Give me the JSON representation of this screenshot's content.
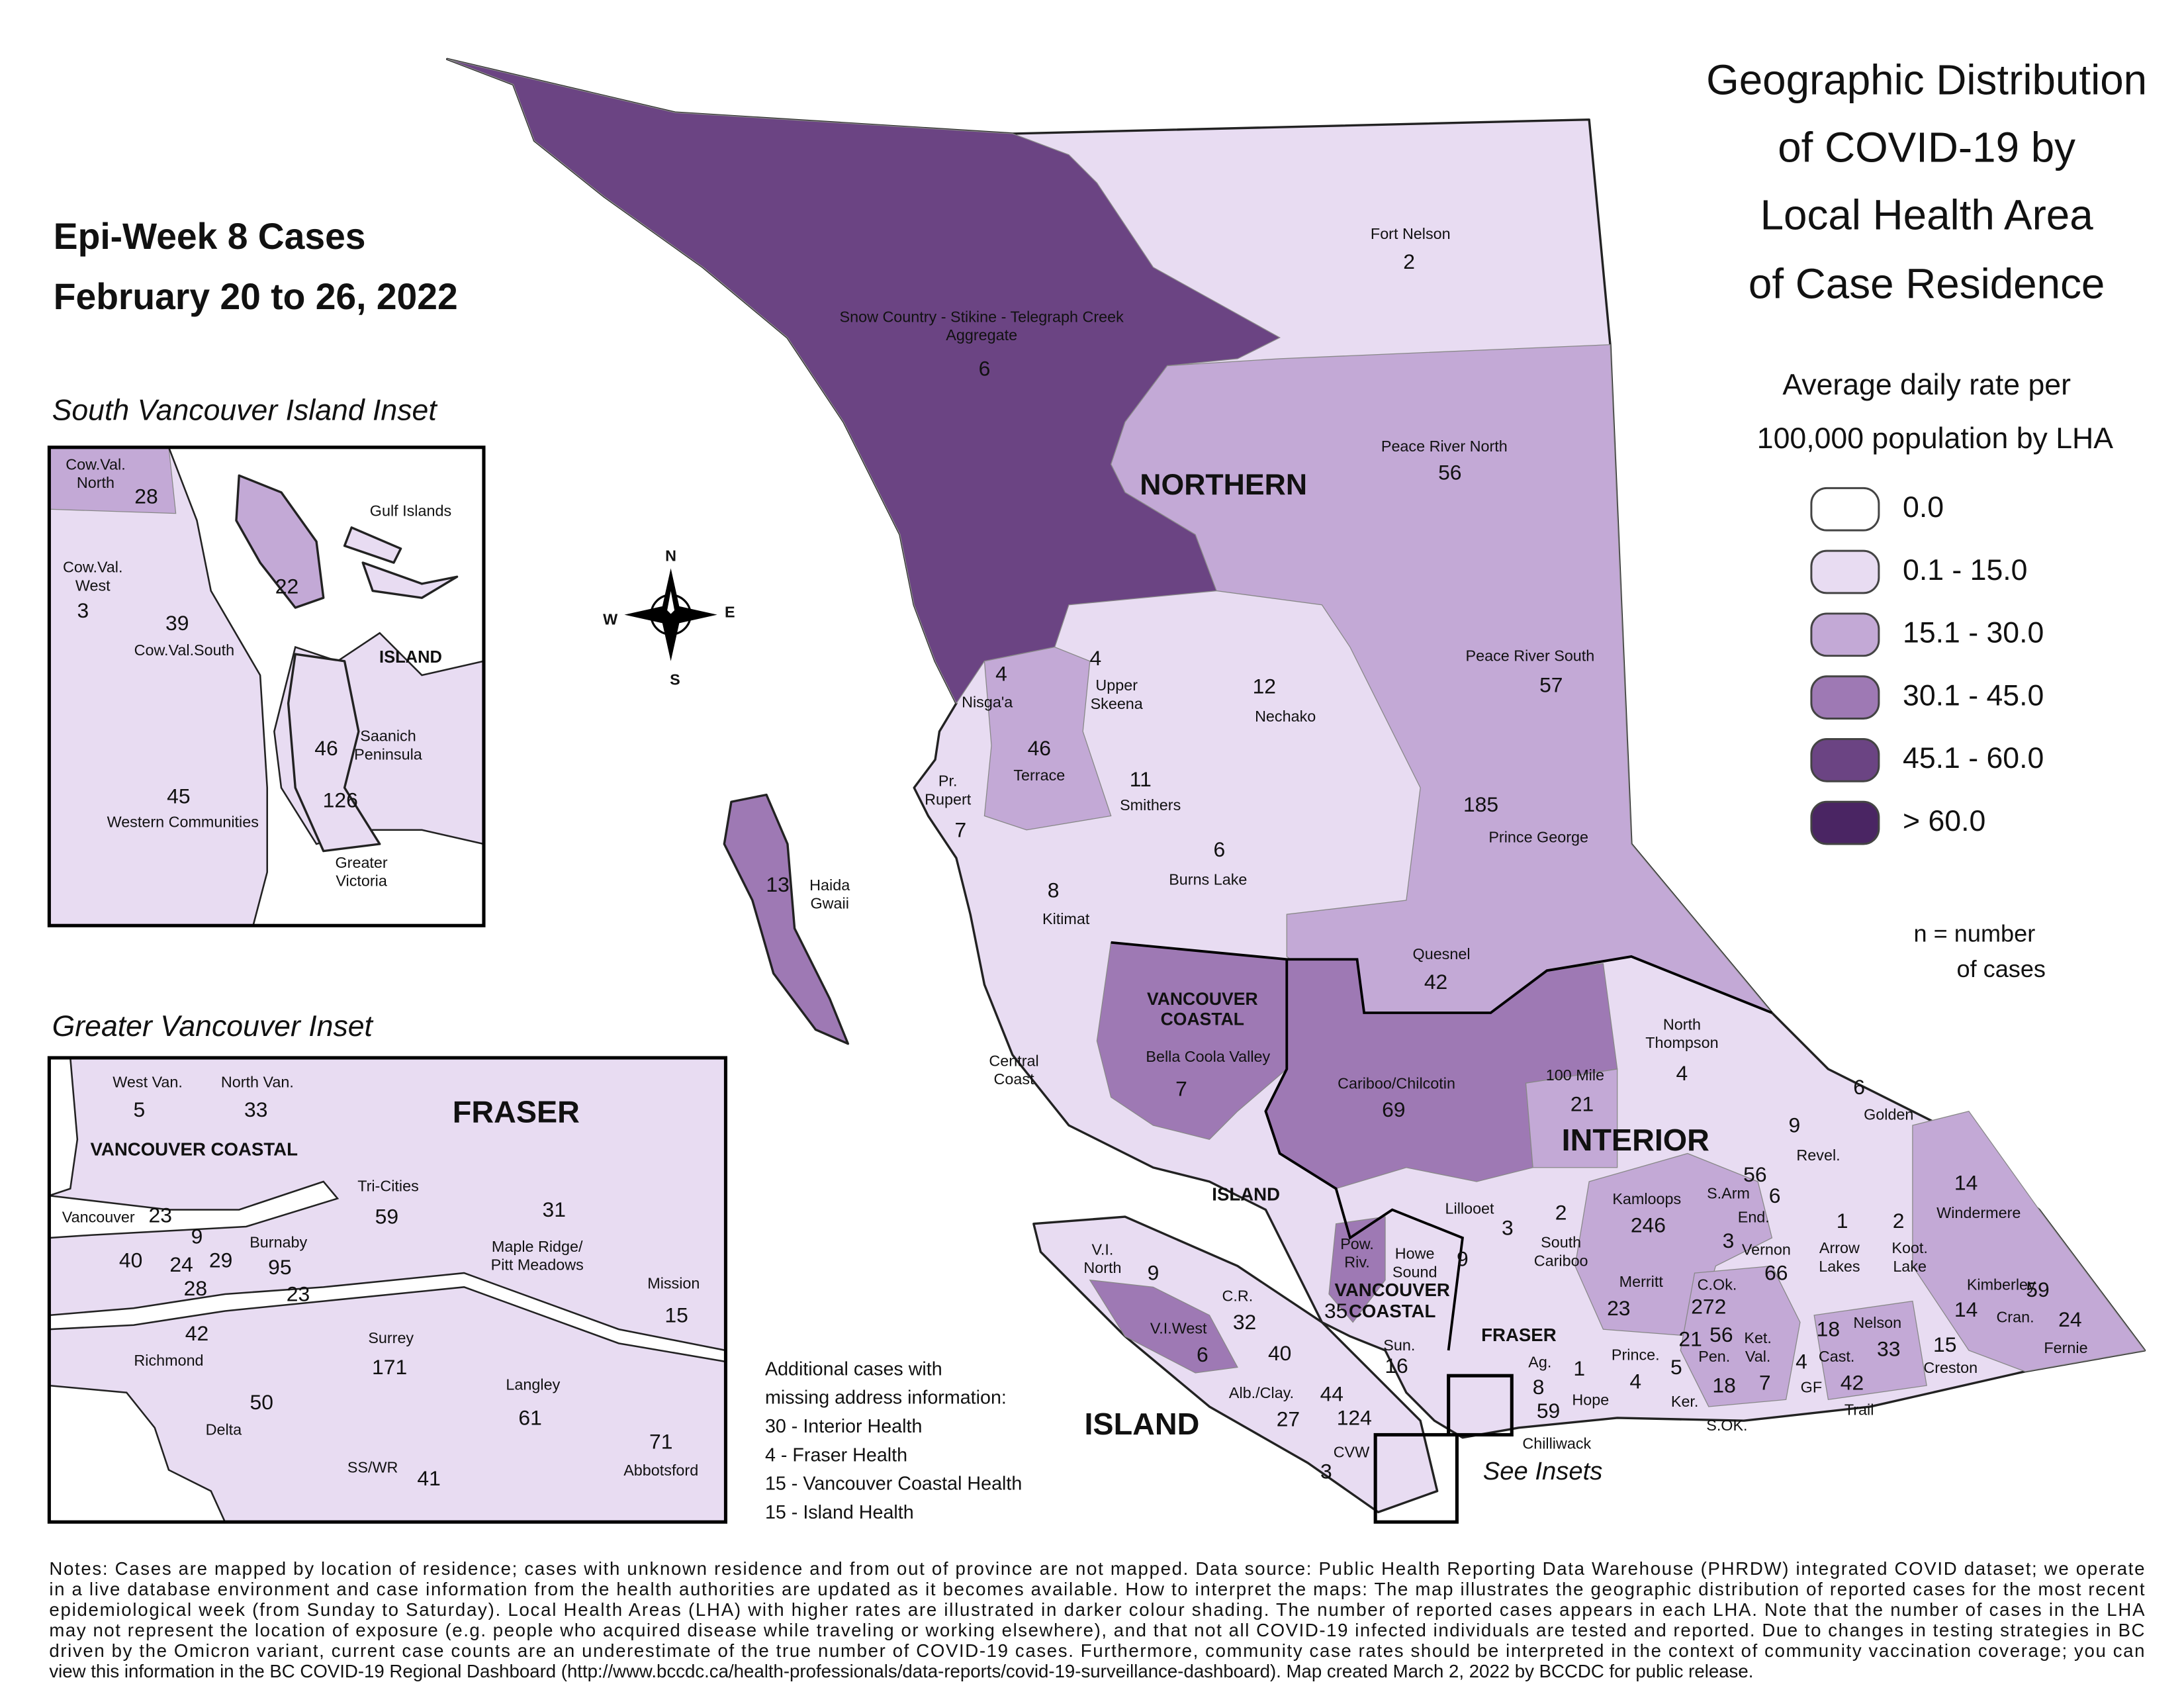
{
  "title": [
    "Geographic Distribution",
    "of COVID-19 by",
    "Local Health Area",
    "of Case Residence"
  ],
  "period": {
    "week": "Epi-Week 8 Cases",
    "dates": "February 20 to 26, 2022"
  },
  "legend": {
    "title": [
      "Average daily rate per",
      "100,000 population by LHA"
    ],
    "classes": [
      {
        "label": "0.0",
        "color": "#ffffff"
      },
      {
        "label": "0.1 - 15.0",
        "color": "#e8dcf2"
      },
      {
        "label": "15.1 - 30.0",
        "color": "#c3a9d6"
      },
      {
        "label": "30.1 - 45.0",
        "color": "#9e79b4"
      },
      {
        "label": "45.1 - 60.0",
        "color": "#6b4483"
      },
      {
        "label": "> 60.0",
        "color": "#4a2563"
      }
    ],
    "note": [
      "n = number",
      "of cases"
    ]
  },
  "compass": {
    "n": "N",
    "s": "S",
    "e": "E",
    "w": "W"
  },
  "insets": [
    {
      "title": "South Vancouver Island Inset"
    },
    {
      "title": "Greater Vancouver Inset"
    }
  ],
  "see_insets": "See Insets",
  "region_labels": [
    "NORTHERN",
    "INTERIOR",
    [
      "VANCOUVER",
      "COASTAL"
    ],
    [
      "VANCOUVER",
      "COASTAL"
    ],
    "FRASER",
    "ISLAND",
    "ISLAND",
    "ISLAND",
    "FRASER",
    "VANCOUVER COASTAL"
  ],
  "areas": [
    {
      "name": [
        "Fort Nelson"
      ],
      "cases": 2
    },
    {
      "name": [
        "Snow Country - Stikine - Telegraph Creek",
        "Aggregate"
      ],
      "cases": 6
    },
    {
      "name": [
        "Peace River North"
      ],
      "cases": 56
    },
    {
      "name": [
        "Peace River South"
      ],
      "cases": 57
    },
    {
      "name": [
        "Nechako"
      ],
      "cases": 12
    },
    {
      "name": [
        "Nisga'a"
      ],
      "cases": 4
    },
    {
      "name": [
        "Upper",
        "Skeena"
      ],
      "cases": 4
    },
    {
      "name": [
        "Terrace"
      ],
      "cases": 46
    },
    {
      "name": [
        "Pr.",
        "Rupert"
      ],
      "cases": 7
    },
    {
      "name": [
        "Smithers"
      ],
      "cases": 11
    },
    {
      "name": [
        "Burns Lake"
      ],
      "cases": 6
    },
    {
      "name": [
        "Prince George"
      ],
      "cases": 185
    },
    {
      "name": [
        "Haida",
        "Gwaii"
      ],
      "cases": 13
    },
    {
      "name": [
        "Kitimat"
      ],
      "cases": 8
    },
    {
      "name": [
        "Quesnel"
      ],
      "cases": 42
    },
    {
      "name": [
        "Central",
        "Coast"
      ]
    },
    {
      "name": [
        "Bella Coola Valley"
      ],
      "cases": 7
    },
    {
      "name": [
        "Cariboo/Chilcotin"
      ],
      "cases": 69
    },
    {
      "name": [
        "100 Mile"
      ],
      "cases": 21
    },
    {
      "name": [
        "North",
        "Thompson"
      ],
      "cases": 4
    },
    {
      "name": [
        "Golden"
      ],
      "cases": 6
    },
    {
      "name": [
        "Revel."
      ],
      "cases": 9
    },
    {
      "name": [
        "Kamloops"
      ],
      "cases": 246
    },
    {
      "name": [
        "Windermere"
      ],
      "cases": 14
    },
    {
      "name": [
        "S.Arm"
      ],
      "cases": 56
    },
    {
      "name": [
        "End."
      ],
      "cases": 6
    },
    {
      "name": [
        "Lillooet"
      ],
      "cases": 3
    },
    {
      "name": [
        "South",
        "Cariboo"
      ],
      "cases": 2
    },
    {
      "cases": 3
    },
    {
      "name": [
        "Vernon"
      ],
      "cases": 66
    },
    {
      "name": [
        "Arrow",
        "Lakes"
      ],
      "cases": 1
    },
    {
      "name": [
        "Koot.",
        "Lake"
      ],
      "cases": 2
    },
    {
      "name": [
        "Merritt"
      ],
      "cases": 23
    },
    {
      "name": [
        "C.Ok."
      ],
      "cases": 272
    },
    {
      "name": [
        "Kimberley"
      ],
      "cases": 14
    },
    {
      "name": [
        "Cran."
      ],
      "cases": 59
    },
    {
      "name": [
        "Fernie"
      ],
      "cases": 24
    },
    {
      "name": [
        "Nelson"
      ],
      "cases": 33
    },
    {
      "name": [
        "Creston"
      ],
      "cases": 15
    },
    {
      "name": [
        "Cast."
      ],
      "cases": 18
    },
    {
      "name": [
        "Trail"
      ],
      "cases": 42
    },
    {
      "name": [
        "GF"
      ],
      "cases": 4
    },
    {
      "name": [
        "Ket.",
        "Val."
      ],
      "cases": 7
    },
    {
      "name": [
        "Pen."
      ],
      "cases": 56
    },
    {
      "cases": 21
    },
    {
      "name": [
        "Ker."
      ],
      "cases": 5
    },
    {
      "name": [
        "S.OK."
      ],
      "cases": 18
    },
    {
      "name": [
        "Prince."
      ],
      "cases": 4
    },
    {
      "name": [
        "Hope"
      ],
      "cases": 1
    },
    {
      "name": [
        "Ag."
      ],
      "cases": 8
    },
    {
      "name": [
        "Chilliwack"
      ],
      "cases": 59
    },
    {
      "name": [
        "Sun."
      ],
      "cases": 16
    },
    {
      "name": [
        "Howe",
        "Sound"
      ],
      "cases": 9
    },
    {
      "name": [
        "Pow.",
        "Riv."
      ],
      "cases": 35
    },
    {
      "name": [
        "V.I.",
        "North"
      ],
      "cases": 9
    },
    {
      "name": [
        "C.R."
      ],
      "cases": 32
    },
    {
      "name": [
        "V.I.West"
      ],
      "cases": 6
    },
    {
      "name": [
        "Alb./Clay."
      ],
      "cases": 27
    },
    {
      "cases": 40
    },
    {
      "cases": 44
    },
    {
      "cases": 124
    },
    {
      "name": [
        "CVW"
      ],
      "cases": 3
    },
    {
      "name": [
        "Cow.Val.",
        "North"
      ],
      "cases": 28
    },
    {
      "name": [
        "Gulf Islands"
      ]
    },
    {
      "cases": 22
    },
    {
      "name": [
        "Cow.Val.",
        "West"
      ],
      "cases": 3
    },
    {
      "name": [
        "Cow.Val.South"
      ],
      "cases": 39
    },
    {
      "name": [
        "Saanich",
        "Peninsula"
      ],
      "cases": 46
    },
    {
      "name": [
        "Western Communities"
      ],
      "cases": 45
    },
    {
      "name": [
        "Greater",
        "Victoria"
      ],
      "cases": 126
    },
    {
      "name": [
        "West Van."
      ],
      "cases": 5
    },
    {
      "name": [
        "North Van."
      ],
      "cases": 33
    },
    {
      "name": [
        "Vancouver"
      ],
      "cases": 23
    },
    {
      "cases": 9
    },
    {
      "cases": 24
    },
    {
      "cases": 28
    },
    {
      "cases": 29
    },
    {
      "cases": 40
    },
    {
      "name": [
        "Burnaby"
      ],
      "cases": 95
    },
    {
      "cases": 23
    },
    {
      "name": [
        "Tri-Cities"
      ],
      "cases": 59
    },
    {
      "name": [
        "Maple Ridge/",
        "Pitt Meadows"
      ],
      "cases": 31
    },
    {
      "name": [
        "Mission"
      ],
      "cases": 15
    },
    {
      "name": [
        "Richmond"
      ],
      "cases": 42
    },
    {
      "name": [
        "Surrey"
      ],
      "cases": 171
    },
    {
      "name": [
        "Langley"
      ],
      "cases": 61
    },
    {
      "name": [
        "Delta"
      ],
      "cases": 50
    },
    {
      "name": [
        "SS/WR"
      ],
      "cases": 41
    },
    {
      "name": [
        "Abbotsford"
      ],
      "cases": 71
    }
  ],
  "missing_address": [
    "Additional cases with",
    "missing address information:",
    "30 - Interior Health",
    "4 -  Fraser Health",
    "15 - Vancouver Coastal Health",
    "15 - Island Health"
  ],
  "notes": [
    "Notes: Cases are mapped by location of residence; cases with unknown residence and from out of province are not mapped. Data source: Public Health Reporting Data Warehouse (PHRDW) integrated COVID dataset; we operate",
    "in a live database environment and case information from the health authorities are updated as it becomes available. How to interpret the maps: The map illustrates the geographic distribution of reported cases for the most recent",
    "epidemiological week (from Sunday to Saturday). Local Health Areas (LHA) with higher rates are illustrated in darker colour shading. The number of reported cases appears in each LHA. Note that the number of cases in the LHA",
    "may not represent the location of exposure (e.g. people who acquired disease while traveling or working elsewhere), and that not all COVID-19 infected individuals are tested and reported. Due to changes in testing strategies in BC",
    "driven by the Omicron variant, current case counts are an underestimate of the true number of COVID-19 cases. Furthermore, community case rates should be interpreted in the context of community vaccination coverage; you can",
    "view this information in the BC COVID-19 Regional Dashboard (http://www.bccdc.ca/health-professionals/data-reports/covid-19-surveillance-dashboard). Map created March 2, 2022 by BCCDC for public release."
  ]
}
